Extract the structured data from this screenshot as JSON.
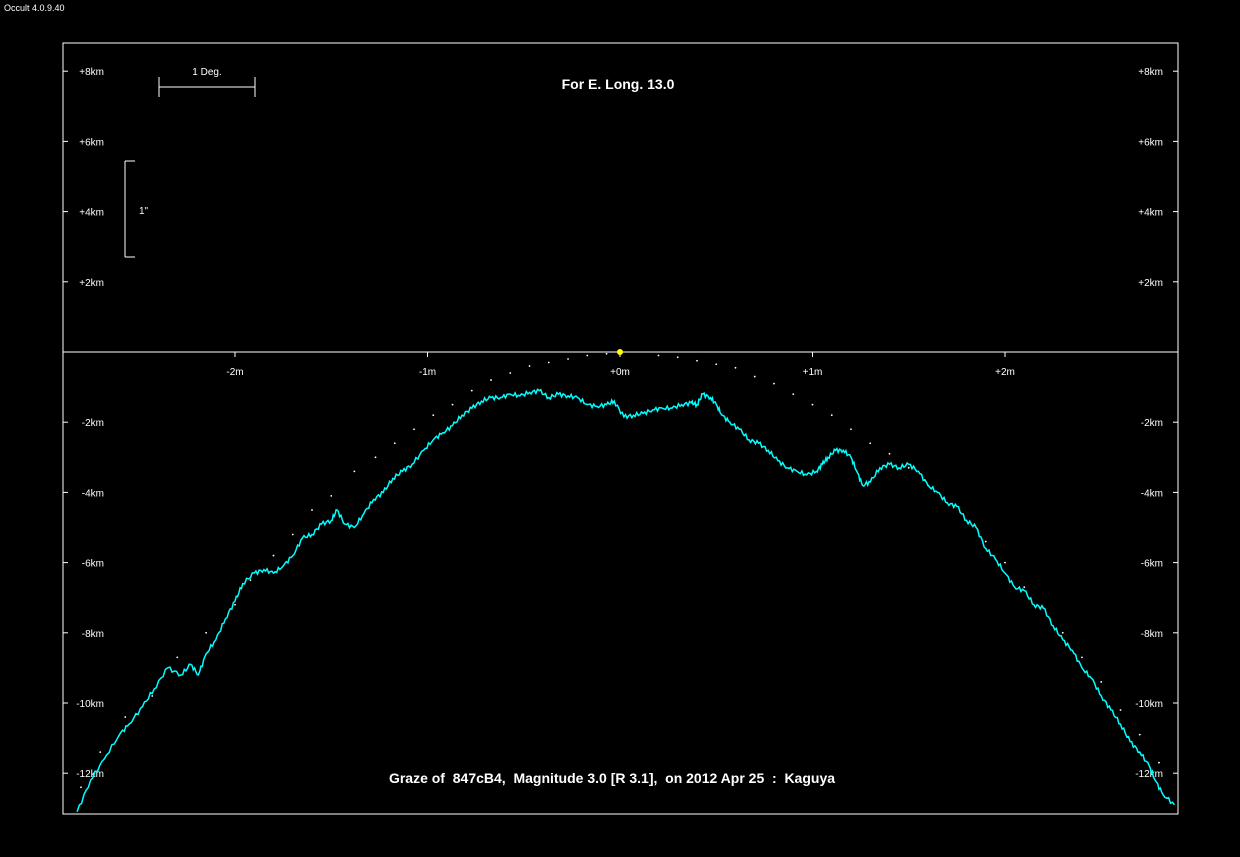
{
  "app_title": "Occult 4.0.9.40",
  "chart_data": {
    "type": "line",
    "title": "For E. Long. 13.0",
    "caption": "Graze of  847cB4,  Magnitude 3.0 [R 3.1],  on 2012 Apr 25  :  Kaguya",
    "xlim": [
      -2.9,
      2.9
    ],
    "ylim": [
      -13.1,
      8.8
    ],
    "x_ticks": [
      {
        "value": -2,
        "label": "-2m"
      },
      {
        "value": -1,
        "label": "-1m"
      },
      {
        "value": 0,
        "label": "+0m"
      },
      {
        "value": 1,
        "label": "+1m"
      },
      {
        "value": 2,
        "label": "+2m"
      }
    ],
    "y_ticks": [
      {
        "value": 8,
        "label": "+8km"
      },
      {
        "value": 6,
        "label": "+6km"
      },
      {
        "value": 4,
        "label": "+4km"
      },
      {
        "value": 2,
        "label": "+2km"
      },
      {
        "value": -2,
        "label": "-2km"
      },
      {
        "value": -4,
        "label": "-4km"
      },
      {
        "value": -6,
        "label": "-6km"
      },
      {
        "value": -8,
        "label": "-8km"
      },
      {
        "value": -10,
        "label": "-10km"
      },
      {
        "value": -12,
        "label": "-12km"
      }
    ],
    "scale_bars": {
      "horizontal_label": "1 Deg.",
      "vertical_label": "1\""
    },
    "star_point": {
      "x": 0,
      "y": 0,
      "color": "#ffff00"
    },
    "series": [
      {
        "color": "#00ffff",
        "points": [
          [
            -2.82,
            -13.1
          ],
          [
            -2.75,
            -12.2
          ],
          [
            -2.68,
            -11.6
          ],
          [
            -2.6,
            -10.9
          ],
          [
            -2.55,
            -10.6
          ],
          [
            -2.48,
            -10.1
          ],
          [
            -2.42,
            -9.6
          ],
          [
            -2.35,
            -9.0
          ],
          [
            -2.28,
            -9.2
          ],
          [
            -2.23,
            -8.9
          ],
          [
            -2.19,
            -9.2
          ],
          [
            -2.15,
            -8.6
          ],
          [
            -2.1,
            -8.2
          ],
          [
            -2.05,
            -7.6
          ],
          [
            -2.0,
            -7.1
          ],
          [
            -1.96,
            -6.6
          ],
          [
            -1.9,
            -6.3
          ],
          [
            -1.85,
            -6.2
          ],
          [
            -1.8,
            -6.3
          ],
          [
            -1.75,
            -6.1
          ],
          [
            -1.7,
            -5.8
          ],
          [
            -1.65,
            -5.3
          ],
          [
            -1.6,
            -5.2
          ],
          [
            -1.55,
            -4.9
          ],
          [
            -1.5,
            -4.8
          ],
          [
            -1.47,
            -4.5
          ],
          [
            -1.43,
            -4.9
          ],
          [
            -1.38,
            -5.0
          ],
          [
            -1.33,
            -4.6
          ],
          [
            -1.28,
            -4.2
          ],
          [
            -1.23,
            -4.0
          ],
          [
            -1.18,
            -3.6
          ],
          [
            -1.13,
            -3.4
          ],
          [
            -1.08,
            -3.2
          ],
          [
            -1.02,
            -2.8
          ],
          [
            -0.97,
            -2.5
          ],
          [
            -0.92,
            -2.3
          ],
          [
            -0.87,
            -2.1
          ],
          [
            -0.82,
            -1.8
          ],
          [
            -0.77,
            -1.6
          ],
          [
            -0.72,
            -1.4
          ],
          [
            -0.67,
            -1.3
          ],
          [
            -0.62,
            -1.3
          ],
          [
            -0.57,
            -1.2
          ],
          [
            -0.52,
            -1.25
          ],
          [
            -0.47,
            -1.15
          ],
          [
            -0.42,
            -1.1
          ],
          [
            -0.37,
            -1.3
          ],
          [
            -0.32,
            -1.2
          ],
          [
            -0.27,
            -1.25
          ],
          [
            -0.22,
            -1.3
          ],
          [
            -0.17,
            -1.5
          ],
          [
            -0.12,
            -1.55
          ],
          [
            -0.07,
            -1.5
          ],
          [
            -0.03,
            -1.4
          ],
          [
            0.02,
            -1.85
          ],
          [
            0.07,
            -1.8
          ],
          [
            0.12,
            -1.75
          ],
          [
            0.17,
            -1.65
          ],
          [
            0.22,
            -1.6
          ],
          [
            0.27,
            -1.6
          ],
          [
            0.32,
            -1.5
          ],
          [
            0.37,
            -1.45
          ],
          [
            0.4,
            -1.5
          ],
          [
            0.43,
            -1.2
          ],
          [
            0.47,
            -1.3
          ],
          [
            0.5,
            -1.5
          ],
          [
            0.53,
            -1.8
          ],
          [
            0.57,
            -2.0
          ],
          [
            0.62,
            -2.2
          ],
          [
            0.67,
            -2.5
          ],
          [
            0.72,
            -2.6
          ],
          [
            0.77,
            -2.8
          ],
          [
            0.82,
            -3.1
          ],
          [
            0.87,
            -3.3
          ],
          [
            0.92,
            -3.4
          ],
          [
            0.97,
            -3.5
          ],
          [
            1.02,
            -3.4
          ],
          [
            1.05,
            -3.2
          ],
          [
            1.08,
            -3.0
          ],
          [
            1.12,
            -2.8
          ],
          [
            1.16,
            -2.8
          ],
          [
            1.2,
            -3.0
          ],
          [
            1.23,
            -3.4
          ],
          [
            1.26,
            -3.8
          ],
          [
            1.3,
            -3.7
          ],
          [
            1.35,
            -3.3
          ],
          [
            1.4,
            -3.2
          ],
          [
            1.45,
            -3.3
          ],
          [
            1.5,
            -3.2
          ],
          [
            1.55,
            -3.4
          ],
          [
            1.6,
            -3.8
          ],
          [
            1.65,
            -4.0
          ],
          [
            1.7,
            -4.3
          ],
          [
            1.75,
            -4.4
          ],
          [
            1.8,
            -4.8
          ],
          [
            1.85,
            -5.0
          ],
          [
            1.9,
            -5.6
          ],
          [
            1.95,
            -5.9
          ],
          [
            2.0,
            -6.3
          ],
          [
            2.05,
            -6.7
          ],
          [
            2.1,
            -6.8
          ],
          [
            2.15,
            -7.2
          ],
          [
            2.2,
            -7.3
          ],
          [
            2.25,
            -7.8
          ],
          [
            2.3,
            -8.2
          ],
          [
            2.35,
            -8.5
          ],
          [
            2.4,
            -9.0
          ],
          [
            2.45,
            -9.3
          ],
          [
            2.5,
            -9.8
          ],
          [
            2.55,
            -10.2
          ],
          [
            2.6,
            -10.6
          ],
          [
            2.65,
            -11.1
          ],
          [
            2.7,
            -11.4
          ],
          [
            2.75,
            -11.8
          ],
          [
            2.78,
            -12.2
          ],
          [
            2.82,
            -12.6
          ],
          [
            2.88,
            -12.9
          ]
        ]
      }
    ],
    "limb_dots": {
      "color": "#ffffff",
      "points": [
        [
          -2.8,
          -12.4
        ],
        [
          -2.7,
          -11.4
        ],
        [
          -2.57,
          -10.4
        ],
        [
          -2.43,
          -9.8
        ],
        [
          -2.3,
          -8.7
        ],
        [
          -2.15,
          -8.0
        ],
        [
          -2.0,
          -7.2
        ],
        [
          -1.92,
          -6.5
        ],
        [
          -1.8,
          -5.8
        ],
        [
          -1.7,
          -5.2
        ],
        [
          -1.6,
          -4.5
        ],
        [
          -1.5,
          -4.1
        ],
        [
          -1.38,
          -3.4
        ],
        [
          -1.27,
          -3.0
        ],
        [
          -1.17,
          -2.6
        ],
        [
          -1.07,
          -2.2
        ],
        [
          -0.97,
          -1.8
        ],
        [
          -0.87,
          -1.5
        ],
        [
          -0.77,
          -1.1
        ],
        [
          -0.67,
          -0.8
        ],
        [
          -0.57,
          -0.6
        ],
        [
          -0.47,
          -0.4
        ],
        [
          -0.37,
          -0.3
        ],
        [
          -0.27,
          -0.2
        ],
        [
          -0.17,
          -0.1
        ],
        [
          -0.07,
          -0.05
        ],
        [
          0.2,
          -0.1
        ],
        [
          0.3,
          -0.15
        ],
        [
          0.4,
          -0.25
        ],
        [
          0.5,
          -0.35
        ],
        [
          0.6,
          -0.45
        ],
        [
          0.7,
          -0.7
        ],
        [
          0.8,
          -0.9
        ],
        [
          0.9,
          -1.2
        ],
        [
          1.0,
          -1.5
        ],
        [
          1.1,
          -1.8
        ],
        [
          1.2,
          -2.2
        ],
        [
          1.3,
          -2.6
        ],
        [
          1.4,
          -2.9
        ],
        [
          1.5,
          -3.3
        ],
        [
          1.6,
          -3.8
        ],
        [
          1.7,
          -4.3
        ],
        [
          1.8,
          -4.8
        ],
        [
          1.9,
          -5.4
        ],
        [
          2.0,
          -6.0
        ],
        [
          2.1,
          -6.7
        ],
        [
          2.2,
          -7.3
        ],
        [
          2.3,
          -8.0
        ],
        [
          2.4,
          -8.7
        ],
        [
          2.5,
          -9.4
        ],
        [
          2.6,
          -10.2
        ],
        [
          2.7,
          -10.9
        ],
        [
          2.8,
          -11.7
        ]
      ]
    }
  }
}
